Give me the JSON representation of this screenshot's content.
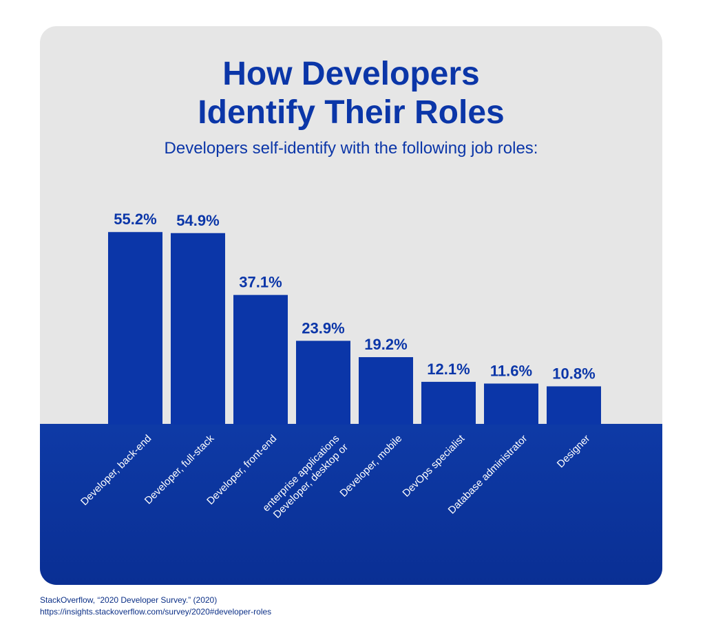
{
  "title_line1": "How Developers",
  "title_line2": "Identify Their Roles",
  "subtitle": "Developers self-identify with the following job roles:",
  "colors": {
    "bar": "#0b36a8",
    "band": "#0e3aa6",
    "panel": "#e6e6e6",
    "text": "#0b36a8",
    "axis_text": "#ffffff"
  },
  "chart_data": {
    "type": "bar",
    "title": "How Developers Identify Their Roles",
    "subtitle": "Developers self-identify with the following job roles:",
    "categories": [
      [
        "Developer, back-end"
      ],
      [
        "Developer, full-stack"
      ],
      [
        "Developer, front-end"
      ],
      [
        "Developer, desktop or",
        "enterprise applications"
      ],
      [
        "Developer, mobile"
      ],
      [
        "DevOps specialist"
      ],
      [
        "Database administrator"
      ],
      [
        "Designer"
      ]
    ],
    "values": [
      55.2,
      54.9,
      37.1,
      23.9,
      19.2,
      12.1,
      11.6,
      10.8
    ],
    "value_labels": [
      "55.2%",
      "54.9%",
      "37.1%",
      "23.9%",
      "19.2%",
      "12.1%",
      "11.6%",
      "10.8%"
    ],
    "ylim": [
      0,
      60
    ],
    "grid": false,
    "legend": "none"
  },
  "source": {
    "citation": "StackOverflow, “2020 Developer Survey.” (2020)",
    "url": "https://insights.stackoverflow.com/survey/2020#developer-roles"
  }
}
